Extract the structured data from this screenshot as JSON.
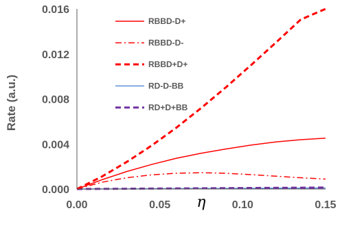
{
  "chart_data": {
    "type": "line",
    "xlabel": "η",
    "ylabel": "Rate (a.u.)",
    "xlim": [
      0.0,
      0.15
    ],
    "ylim": [
      0.0,
      0.016
    ],
    "x_ticks": [
      "0.00",
      "0.05",
      "0.10",
      "0.15"
    ],
    "y_ticks": [
      "0.000",
      "0.004",
      "0.008",
      "0.012",
      "0.016"
    ],
    "grid": false,
    "legend_position": "top-center",
    "x": [
      0.0,
      0.015,
      0.03,
      0.045,
      0.06,
      0.075,
      0.09,
      0.105,
      0.12,
      0.135,
      0.15
    ],
    "series": [
      {
        "name": "RBBD-D+",
        "color": "#ff0000",
        "dash": "solid",
        "values": [
          0.0,
          0.00082,
          0.00155,
          0.00218,
          0.00273,
          0.00318,
          0.00356,
          0.0039,
          0.00418,
          0.00438,
          0.00452
        ]
      },
      {
        "name": "RBBD-D-",
        "color": "#ff0000",
        "dash": "dashdot",
        "values": [
          0.0,
          0.0006,
          0.001,
          0.00126,
          0.0014,
          0.00145,
          0.0014,
          0.00128,
          0.00114,
          0.001,
          0.00088
        ]
      },
      {
        "name": "RBBD+D+",
        "color": "#ff0000",
        "dash": "dash",
        "values": [
          0.0,
          0.0011,
          0.0024,
          0.00385,
          0.00545,
          0.0072,
          0.00905,
          0.011,
          0.013,
          0.01505,
          0.016
        ]
      },
      {
        "name": "RD-D-BB",
        "color": "#5b8fd6",
        "dash": "solid",
        "values": [
          0.0,
          8e-06,
          1.8e-05,
          2.7e-05,
          3.6e-05,
          4.6e-05,
          5.5e-05,
          6.4e-05,
          7.3e-05,
          8.2e-05,
          9e-05
        ]
      },
      {
        "name": "RD+D+BB",
        "color": "#7030a0",
        "dash": "dash",
        "values": [
          0.0,
          1.2e-05,
          2.5e-05,
          3.8e-05,
          5e-05,
          6.3e-05,
          7.6e-05,
          9e-05,
          0.000103,
          0.000116,
          0.00013
        ]
      }
    ]
  }
}
